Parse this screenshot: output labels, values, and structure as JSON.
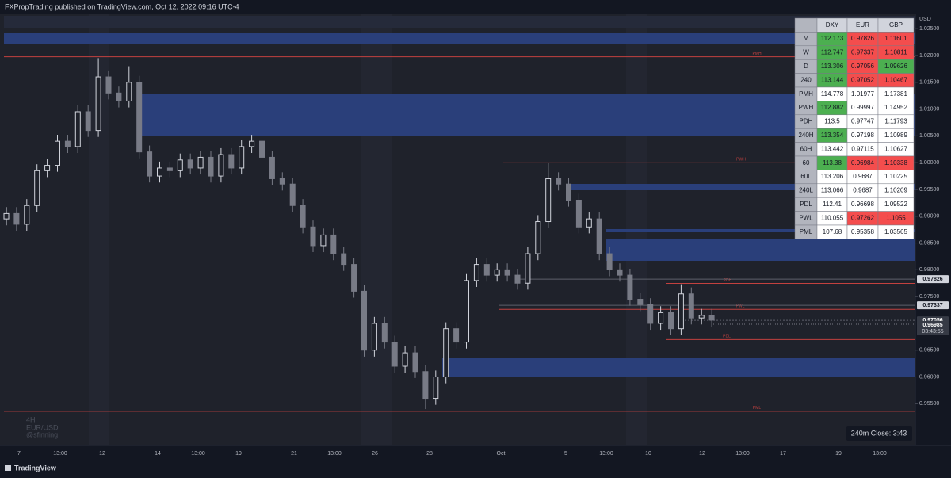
{
  "header": {
    "title": "FXPropTrading published on TradingView.com, Oct 12, 2022 09:16 UTC-4"
  },
  "chart_data": {
    "type": "candlestick",
    "symbol": "EUR/USD",
    "interval": "4H",
    "watermark": "@sfinning",
    "currency": "USD",
    "ylim": [
      0.9475,
      1.0274
    ],
    "yticks": [
      {
        "value": 1.025,
        "label": "1.02500"
      },
      {
        "value": 1.02,
        "label": "1.02000"
      },
      {
        "value": 1.015,
        "label": "1.01500"
      },
      {
        "value": 1.01,
        "label": "1.01000"
      },
      {
        "value": 1.005,
        "label": "1.00500"
      },
      {
        "value": 1.0,
        "label": "1.00000"
      },
      {
        "value": 0.995,
        "label": "0.99500"
      },
      {
        "value": 0.99,
        "label": "0.99000"
      },
      {
        "value": 0.985,
        "label": "0.98500"
      },
      {
        "value": 0.98,
        "label": "0.98000"
      },
      {
        "value": 0.975,
        "label": "0.97500"
      },
      {
        "value": 0.965,
        "label": "0.96500"
      },
      {
        "value": 0.96,
        "label": "0.96000"
      },
      {
        "value": 0.955,
        "label": "0.95500"
      }
    ],
    "time_labels": [
      "7",
      "13:00",
      "12",
      "14",
      "13:00",
      "19",
      "21",
      "13:00",
      "26",
      "28",
      "Oct",
      "5",
      "13:00",
      "10",
      "12",
      "13:00",
      "17",
      "19",
      "13:00"
    ],
    "up_color": "#d1d4dc",
    "down_color": "#787b86",
    "level_color": "#c2413f",
    "candles": [
      [
        0.9895,
        0.9917,
        0.9883,
        0.9905
      ],
      [
        0.9905,
        0.9917,
        0.9873,
        0.9885
      ],
      [
        0.9885,
        0.9932,
        0.9873,
        0.992
      ],
      [
        0.992,
        0.9997,
        0.9908,
        0.9985
      ],
      [
        0.9985,
        1.0007,
        0.9973,
        0.9995
      ],
      [
        0.9995,
        1.0052,
        0.9983,
        1.004
      ],
      [
        1.004,
        1.0052,
        1.0018,
        1.003
      ],
      [
        1.003,
        1.0107,
        1.0018,
        1.0095
      ],
      [
        1.0095,
        1.0107,
        1.0048,
        1.006
      ],
      [
        1.006,
        1.0195,
        1.0048,
        1.016
      ],
      [
        1.016,
        1.0172,
        1.0118,
        1.013
      ],
      [
        1.013,
        1.0142,
        1.0103,
        1.0115
      ],
      [
        1.0115,
        1.018,
        1.0103,
        1.015
      ],
      [
        1.015,
        1.0162,
        1.0008,
        1.002
      ],
      [
        1.002,
        1.0032,
        0.9963,
        0.9975
      ],
      [
        0.9975,
        1.0002,
        0.9963,
        0.999
      ],
      [
        0.999,
        1.0002,
        0.9973,
        0.9985
      ],
      [
        0.9985,
        1.0017,
        0.9973,
        1.0005
      ],
      [
        1.0005,
        1.0017,
        0.9978,
        0.999
      ],
      [
        0.999,
        1.0022,
        0.9978,
        1.001
      ],
      [
        1.001,
        1.0022,
        0.9963,
        0.9975
      ],
      [
        0.9975,
        1.0027,
        0.9963,
        1.0015
      ],
      [
        1.0015,
        1.0027,
        0.9978,
        0.999
      ],
      [
        0.999,
        1.0042,
        0.9978,
        1.003
      ],
      [
        1.003,
        1.0052,
        1.0018,
        1.004
      ],
      [
        1.004,
        1.0052,
        0.9998,
        1.001
      ],
      [
        1.001,
        1.0022,
        0.9958,
        0.997
      ],
      [
        0.997,
        0.9982,
        0.9948,
        0.996
      ],
      [
        0.996,
        0.9972,
        0.9908,
        0.992
      ],
      [
        0.992,
        0.9932,
        0.9868,
        0.988
      ],
      [
        0.988,
        0.9892,
        0.9833,
        0.9845
      ],
      [
        0.9845,
        0.9877,
        0.9833,
        0.9865
      ],
      [
        0.9865,
        0.9877,
        0.9818,
        0.983
      ],
      [
        0.983,
        0.9842,
        0.9798,
        0.981
      ],
      [
        0.981,
        0.9822,
        0.9748,
        0.976
      ],
      [
        0.976,
        0.9772,
        0.9638,
        0.965
      ],
      [
        0.965,
        0.9712,
        0.9638,
        0.97
      ],
      [
        0.97,
        0.9712,
        0.9653,
        0.9665
      ],
      [
        0.9665,
        0.9677,
        0.9608,
        0.962
      ],
      [
        0.962,
        0.9657,
        0.9608,
        0.9645
      ],
      [
        0.9645,
        0.9657,
        0.9598,
        0.961
      ],
      [
        0.961,
        0.9622,
        0.954,
        0.956
      ],
      [
        0.956,
        0.9612,
        0.9548,
        0.96
      ],
      [
        0.96,
        0.9702,
        0.9588,
        0.969
      ],
      [
        0.969,
        0.9702,
        0.9653,
        0.9665
      ],
      [
        0.9665,
        0.9792,
        0.9653,
        0.978
      ],
      [
        0.978,
        0.9822,
        0.9768,
        0.981
      ],
      [
        0.981,
        0.9822,
        0.9778,
        0.979
      ],
      [
        0.979,
        0.9812,
        0.9778,
        0.98
      ],
      [
        0.98,
        0.9812,
        0.9778,
        0.979
      ],
      [
        0.979,
        0.9802,
        0.9763,
        0.9775
      ],
      [
        0.9775,
        0.9842,
        0.9763,
        0.983
      ],
      [
        0.983,
        0.9902,
        0.9818,
        0.989
      ],
      [
        0.989,
        0.9999,
        0.9878,
        0.997
      ],
      [
        0.997,
        0.9982,
        0.9948,
        0.996
      ],
      [
        0.996,
        0.9972,
        0.9918,
        0.993
      ],
      [
        0.993,
        0.9942,
        0.9868,
        0.988
      ],
      [
        0.988,
        0.9907,
        0.9868,
        0.9895
      ],
      [
        0.9895,
        0.9907,
        0.9818,
        0.983
      ],
      [
        0.983,
        0.9842,
        0.9788,
        0.98
      ],
      [
        0.98,
        0.9812,
        0.9778,
        0.979
      ],
      [
        0.979,
        0.9802,
        0.9733,
        0.9745
      ],
      [
        0.9745,
        0.9757,
        0.9723,
        0.9735
      ],
      [
        0.9735,
        0.9747,
        0.9688,
        0.97
      ],
      [
        0.97,
        0.9732,
        0.9688,
        0.972
      ],
      [
        0.972,
        0.9732,
        0.9678,
        0.969
      ],
      [
        0.969,
        0.9773,
        0.9678,
        0.9755
      ],
      [
        0.9755,
        0.9767,
        0.9698,
        0.971
      ],
      [
        0.971,
        0.9727,
        0.9698,
        0.9715
      ],
      [
        0.9715,
        0.9727,
        0.9694,
        0.9706
      ]
    ],
    "levels": [
      "PMH",
      "PWH",
      "PDH",
      "PWL",
      "PDL",
      "PML"
    ],
    "last_price": 0.96985,
    "countdown": "03:43:55",
    "close_timer": "240m Close: 3:43"
  },
  "table": {
    "columns": [
      "DXY",
      "EUR",
      "GBP"
    ],
    "rows": [
      {
        "label": "M",
        "values": [
          112.173,
          0.97826,
          1.11601
        ],
        "colors": [
          "#4caf50",
          "#f44d4d",
          "#f44d4d"
        ]
      },
      {
        "label": "W",
        "values": [
          112.747,
          0.97337,
          1.10811
        ],
        "colors": [
          "#4caf50",
          "#f44d4d",
          "#f44d4d"
        ]
      },
      {
        "label": "D",
        "values": [
          113.306,
          0.97056,
          1.09626
        ],
        "colors": [
          "#4caf50",
          "#f44d4d",
          "#4caf50"
        ]
      },
      {
        "label": "240",
        "values": [
          113.144,
          0.97052,
          1.10467
        ],
        "colors": [
          "#4caf50",
          "#f44d4d",
          "#f44d4d"
        ]
      },
      {
        "label": "PMH",
        "values": [
          114.778,
          1.01977,
          1.17381
        ],
        "colors": [
          "#ffffff",
          "#ffffff",
          "#ffffff"
        ]
      },
      {
        "label": "PWH",
        "values": [
          112.882,
          0.99997,
          1.14952
        ],
        "colors": [
          "#4caf50",
          "#ffffff",
          "#ffffff"
        ]
      },
      {
        "label": "PDH",
        "values": [
          113.5,
          0.97747,
          1.11793
        ],
        "colors": [
          "#ffffff",
          "#ffffff",
          "#ffffff"
        ]
      },
      {
        "label": "240H",
        "values": [
          113.354,
          0.97198,
          1.10989
        ],
        "colors": [
          "#4caf50",
          "#ffffff",
          "#ffffff"
        ]
      },
      {
        "label": "60H",
        "values": [
          113.442,
          0.97115,
          1.10627
        ],
        "colors": [
          "#ffffff",
          "#ffffff",
          "#ffffff"
        ]
      },
      {
        "label": "60",
        "values": [
          113.38,
          0.96984,
          1.10338
        ],
        "colors": [
          "#4caf50",
          "#f44d4d",
          "#f44d4d"
        ]
      },
      {
        "label": "60L",
        "values": [
          113.206,
          0.9687,
          1.10225
        ],
        "colors": [
          "#ffffff",
          "#ffffff",
          "#ffffff"
        ]
      },
      {
        "label": "240L",
        "values": [
          113.066,
          0.9687,
          1.10209
        ],
        "colors": [
          "#ffffff",
          "#ffffff",
          "#ffffff"
        ]
      },
      {
        "label": "PDL",
        "values": [
          112.41,
          0.96698,
          1.09522
        ],
        "colors": [
          "#ffffff",
          "#ffffff",
          "#ffffff"
        ]
      },
      {
        "label": "PWL",
        "values": [
          110.055,
          0.97262,
          1.1055
        ],
        "colors": [
          "#ffffff",
          "#f44d4d",
          "#f44d4d"
        ]
      },
      {
        "label": "PML",
        "values": [
          107.68,
          0.95358,
          1.03565
        ],
        "colors": [
          "#ffffff",
          "#ffffff",
          "#ffffff"
        ]
      }
    ]
  },
  "footer": {
    "brand": "TradingView"
  }
}
